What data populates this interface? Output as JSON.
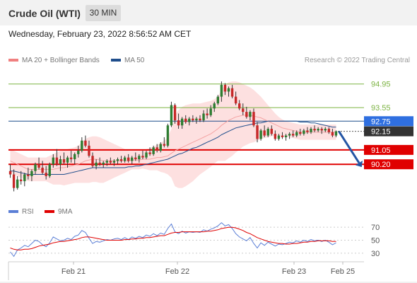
{
  "header": {
    "title": "Crude Oil (WTI)",
    "timeframe": "30 MIN"
  },
  "timestamp": "Wednesday, February 23, 2022 8:56:52 AM CET",
  "legend": {
    "bollinger": {
      "label": "MA 20 + Bollinger Bands",
      "color": "#f08080"
    },
    "ma50": {
      "label": "MA 50",
      "color": "#1f4e8c"
    },
    "credit": "Research © 2022 Trading Central"
  },
  "indicator_legend": {
    "rsi": {
      "label": "RSI",
      "color": "#5b7fd6"
    },
    "ma9": {
      "label": "9MA",
      "color": "#e00000"
    }
  },
  "chart_data": [
    {
      "type": "candlestick",
      "title": "Crude Oil (WTI)",
      "timeframe": "30 MIN",
      "x_ticks": [
        "Feb 21",
        "Feb 22",
        "Feb 23",
        "Feb 25"
      ],
      "ylim": [
        88.2,
        95.9
      ],
      "levels": [
        {
          "value": 94.95,
          "label": "94.95",
          "kind": "resistance",
          "color": "#7cb342",
          "label_bg": "",
          "label_color": "#7cb342"
        },
        {
          "value": 93.55,
          "label": "93.55",
          "kind": "resistance",
          "color": "#7cb342",
          "label_bg": "",
          "label_color": "#7cb342"
        },
        {
          "value": 92.75,
          "label": "92.75",
          "kind": "ma50",
          "color": "#1f4e8c",
          "label_bg": "#2f6fe0",
          "label_color": "#ffffff"
        },
        {
          "value": 92.15,
          "label": "92.15",
          "kind": "last",
          "color": "#555555",
          "label_bg": "#333333",
          "label_color": "#ffffff"
        },
        {
          "value": 91.05,
          "label": "91.05",
          "kind": "support",
          "color": "#e00000",
          "label_bg": "#e00000",
          "label_color": "#ffffff"
        },
        {
          "value": 90.2,
          "label": "90.20",
          "kind": "support",
          "color": "#e00000",
          "label_bg": "#e00000",
          "label_color": "#ffffff"
        }
      ],
      "forecast_arrow": {
        "from": 92.15,
        "to": 90.2,
        "color": "#2455a4"
      },
      "ohlc": [
        [
          89.8,
          90.2,
          89.4,
          89.6
        ],
        [
          89.6,
          89.9,
          88.6,
          88.8
        ],
        [
          88.8,
          89.5,
          88.7,
          89.3
        ],
        [
          89.3,
          89.8,
          89.0,
          89.2
        ],
        [
          89.2,
          89.7,
          88.9,
          89.6
        ],
        [
          89.6,
          90.0,
          89.3,
          89.5
        ],
        [
          89.5,
          89.9,
          89.2,
          89.8
        ],
        [
          89.8,
          90.3,
          89.6,
          90.2
        ],
        [
          90.2,
          90.6,
          89.9,
          90.0
        ],
        [
          90.0,
          90.4,
          89.6,
          89.7
        ],
        [
          89.7,
          90.1,
          89.3,
          89.5
        ],
        [
          89.5,
          90.3,
          89.4,
          90.2
        ],
        [
          90.2,
          90.8,
          90.0,
          90.6
        ],
        [
          90.6,
          91.1,
          90.1,
          90.2
        ],
        [
          90.2,
          90.7,
          89.8,
          90.5
        ],
        [
          90.5,
          90.9,
          90.2,
          90.3
        ],
        [
          90.3,
          90.7,
          90.0,
          90.6
        ],
        [
          90.6,
          91.0,
          90.3,
          90.5
        ],
        [
          90.5,
          90.9,
          90.2,
          90.8
        ],
        [
          90.8,
          91.3,
          90.6,
          91.0
        ],
        [
          91.0,
          91.8,
          90.9,
          91.6
        ],
        [
          91.6,
          91.9,
          91.2,
          91.3
        ],
        [
          91.3,
          91.6,
          90.6,
          90.7
        ],
        [
          90.7,
          90.9,
          90.0,
          90.1
        ],
        [
          90.1,
          90.5,
          89.9,
          90.3
        ],
        [
          90.3,
          90.6,
          90.1,
          90.2
        ],
        [
          90.2,
          90.4,
          90.0,
          90.3
        ],
        [
          90.3,
          90.5,
          90.1,
          90.4
        ],
        [
          90.4,
          90.6,
          90.2,
          90.3
        ],
        [
          90.3,
          90.5,
          90.1,
          90.4
        ],
        [
          90.4,
          90.6,
          90.2,
          90.5
        ],
        [
          90.5,
          90.7,
          90.3,
          90.4
        ],
        [
          90.4,
          90.7,
          90.3,
          90.6
        ],
        [
          90.6,
          90.8,
          90.3,
          90.4
        ],
        [
          90.4,
          90.7,
          90.2,
          90.6
        ],
        [
          90.6,
          90.9,
          90.4,
          90.5
        ],
        [
          90.5,
          90.8,
          90.3,
          90.7
        ],
        [
          90.7,
          91.0,
          90.5,
          90.6
        ],
        [
          90.6,
          91.0,
          90.5,
          90.9
        ],
        [
          90.9,
          91.2,
          90.7,
          90.8
        ],
        [
          90.8,
          91.3,
          90.7,
          91.2
        ],
        [
          91.2,
          91.4,
          90.9,
          91.0
        ],
        [
          91.0,
          91.5,
          90.9,
          91.4
        ],
        [
          91.4,
          91.8,
          91.2,
          91.3
        ],
        [
          91.3,
          92.6,
          91.2,
          92.5
        ],
        [
          92.5,
          93.9,
          92.4,
          93.7
        ],
        [
          93.7,
          93.8,
          92.6,
          92.8
        ],
        [
          92.8,
          93.2,
          92.3,
          92.5
        ],
        [
          92.5,
          93.0,
          92.3,
          92.9
        ],
        [
          92.9,
          93.1,
          92.6,
          92.7
        ],
        [
          92.7,
          93.0,
          92.5,
          92.9
        ],
        [
          92.9,
          93.1,
          92.7,
          92.8
        ],
        [
          92.8,
          93.0,
          92.6,
          92.9
        ],
        [
          92.9,
          93.1,
          92.7,
          92.8
        ],
        [
          92.8,
          93.4,
          92.7,
          93.2
        ],
        [
          93.2,
          93.5,
          92.9,
          93.1
        ],
        [
          93.1,
          93.7,
          93.0,
          93.5
        ],
        [
          93.5,
          93.9,
          93.3,
          93.8
        ],
        [
          93.8,
          94.3,
          93.7,
          94.2
        ],
        [
          94.2,
          95.1,
          93.9,
          94.9
        ],
        [
          94.9,
          95.0,
          94.3,
          94.5
        ],
        [
          94.5,
          94.8,
          94.2,
          94.7
        ],
        [
          94.7,
          94.9,
          94.1,
          94.2
        ],
        [
          94.2,
          94.5,
          93.7,
          93.8
        ],
        [
          93.8,
          94.0,
          93.4,
          93.5
        ],
        [
          93.5,
          93.8,
          93.1,
          93.3
        ],
        [
          93.3,
          93.6,
          92.9,
          93.0
        ],
        [
          93.0,
          93.4,
          92.8,
          93.3
        ],
        [
          93.3,
          93.5,
          92.4,
          92.5
        ],
        [
          92.5,
          92.7,
          91.5,
          91.7
        ],
        [
          91.7,
          92.3,
          91.6,
          92.2
        ],
        [
          92.2,
          92.5,
          91.8,
          91.9
        ],
        [
          91.9,
          92.4,
          91.8,
          92.3
        ],
        [
          92.3,
          92.5,
          91.9,
          92.0
        ],
        [
          92.0,
          92.2,
          91.6,
          91.7
        ],
        [
          91.7,
          92.0,
          91.6,
          91.9
        ],
        [
          91.9,
          92.1,
          91.7,
          91.8
        ],
        [
          91.8,
          92.0,
          91.6,
          91.9
        ],
        [
          91.9,
          92.1,
          91.7,
          92.0
        ],
        [
          92.0,
          92.2,
          91.8,
          91.9
        ],
        [
          91.9,
          92.2,
          91.8,
          92.1
        ],
        [
          92.1,
          92.3,
          91.9,
          92.0
        ],
        [
          92.0,
          92.3,
          91.9,
          92.2
        ],
        [
          92.2,
          92.4,
          92.0,
          92.1
        ],
        [
          92.1,
          92.4,
          92.0,
          92.3
        ],
        [
          92.3,
          92.5,
          92.1,
          92.2
        ],
        [
          92.2,
          92.4,
          92.1,
          92.3
        ],
        [
          92.3,
          92.4,
          92.0,
          92.2
        ],
        [
          92.2,
          92.4,
          92.1,
          92.3
        ],
        [
          92.3,
          92.4,
          92.0,
          92.1
        ],
        [
          92.1,
          92.3,
          91.8,
          91.9
        ],
        [
          91.9,
          92.2,
          91.8,
          92.15
        ]
      ],
      "ma20": [
        90.4,
        90.3,
        90.2,
        90.1,
        90.0,
        89.9,
        89.9,
        89.9,
        89.9,
        89.9,
        89.9,
        89.9,
        89.9,
        89.95,
        90.0,
        90.0,
        90.05,
        90.1,
        90.15,
        90.2,
        90.3,
        90.4,
        90.45,
        90.5,
        90.5,
        90.45,
        90.4,
        90.4,
        90.4,
        90.4,
        90.4,
        90.4,
        90.4,
        90.4,
        90.45,
        90.45,
        90.45,
        90.5,
        90.5,
        90.5,
        90.55,
        90.6,
        90.6,
        90.65,
        90.7,
        90.85,
        91.0,
        91.1,
        91.2,
        91.3,
        91.4,
        91.5,
        91.6,
        91.7,
        91.8,
        91.9,
        92.0,
        92.15,
        92.3,
        92.5,
        92.65,
        92.8,
        92.9,
        93.0,
        93.05,
        93.1,
        93.1,
        93.1,
        93.05,
        93.0,
        92.95,
        92.85,
        92.75,
        92.65,
        92.55,
        92.45,
        92.35,
        92.3,
        92.25,
        92.2,
        92.15,
        92.1,
        92.1,
        92.1,
        92.1,
        92.1,
        92.1,
        92.1,
        92.1,
        92.1,
        92.1,
        92.1
      ],
      "bb_upper": [
        91.1,
        91.0,
        90.9,
        90.8,
        90.7,
        90.6,
        90.6,
        90.6,
        90.6,
        90.6,
        90.6,
        90.7,
        90.8,
        90.9,
        91.0,
        91.05,
        91.1,
        91.15,
        91.2,
        91.3,
        91.5,
        91.7,
        91.8,
        91.85,
        91.85,
        91.8,
        91.7,
        91.6,
        91.5,
        91.4,
        91.3,
        91.2,
        91.1,
        91.0,
        91.0,
        91.0,
        91.0,
        91.05,
        91.1,
        91.15,
        91.25,
        91.35,
        91.45,
        91.6,
        91.8,
        92.3,
        93.1,
        93.4,
        93.6,
        93.7,
        93.75,
        93.8,
        93.8,
        93.8,
        93.85,
        93.9,
        93.95,
        94.05,
        94.2,
        94.6,
        94.9,
        95.05,
        95.1,
        95.1,
        95.05,
        94.95,
        94.85,
        94.75,
        94.6,
        94.4,
        94.2,
        93.95,
        93.7,
        93.45,
        93.2,
        93.0,
        92.85,
        92.75,
        92.7,
        92.65,
        92.6,
        92.55,
        92.55,
        92.55,
        92.55,
        92.55,
        92.55,
        92.55,
        92.55,
        92.55,
        92.55,
        92.55
      ],
      "bb_lower": [
        89.7,
        89.6,
        89.5,
        89.4,
        89.3,
        89.2,
        89.2,
        89.2,
        89.2,
        89.2,
        89.2,
        89.1,
        89.0,
        89.0,
        89.0,
        88.95,
        89.0,
        89.05,
        89.1,
        89.1,
        89.1,
        89.1,
        89.1,
        89.15,
        89.15,
        89.1,
        89.1,
        89.2,
        89.3,
        89.4,
        89.5,
        89.6,
        89.7,
        89.8,
        89.9,
        89.9,
        89.9,
        89.95,
        89.9,
        89.85,
        89.85,
        89.85,
        89.75,
        89.7,
        89.6,
        89.4,
        88.9,
        88.8,
        88.8,
        88.9,
        89.05,
        89.2,
        89.4,
        89.6,
        89.75,
        89.9,
        90.05,
        90.25,
        90.4,
        90.4,
        90.4,
        90.55,
        90.7,
        90.9,
        91.05,
        91.25,
        91.35,
        91.45,
        91.5,
        91.6,
        91.7,
        91.75,
        91.8,
        91.85,
        91.9,
        91.9,
        91.85,
        91.85,
        91.8,
        91.75,
        91.7,
        91.65,
        91.65,
        91.65,
        91.65,
        91.65,
        91.65,
        91.65,
        91.65,
        91.65,
        91.65,
        91.65
      ],
      "ma50": [
        89.8,
        89.8,
        89.75,
        89.7,
        89.65,
        89.6,
        89.6,
        89.6,
        89.6,
        89.6,
        89.6,
        89.6,
        89.6,
        89.6,
        89.6,
        89.6,
        89.65,
        89.7,
        89.75,
        89.8,
        89.85,
        89.9,
        89.95,
        90.0,
        90.0,
        90.0,
        90.0,
        90.0,
        90.0,
        90.0,
        90.0,
        90.0,
        90.0,
        90.05,
        90.05,
        90.1,
        90.1,
        90.15,
        90.2,
        90.25,
        90.3,
        90.35,
        90.4,
        90.45,
        90.5,
        90.6,
        90.7,
        90.8,
        90.85,
        90.95,
        91.05,
        91.15,
        91.2,
        91.3,
        91.4,
        91.5,
        91.6,
        91.7,
        91.8,
        91.95,
        92.05,
        92.15,
        92.25,
        92.35,
        92.4,
        92.45,
        92.5,
        92.55,
        92.6,
        92.65,
        92.65,
        92.7,
        92.75,
        92.75,
        92.75,
        92.75,
        92.75,
        92.75,
        92.75,
        92.75,
        92.75,
        92.7,
        92.7,
        92.7,
        92.65,
        92.65,
        92.6,
        92.55,
        92.5,
        92.45,
        92.4,
        92.4
      ]
    },
    {
      "type": "line",
      "title": "RSI",
      "y_ticks": [
        70,
        50,
        30
      ],
      "ylim": [
        20,
        80
      ],
      "series": [
        {
          "name": "RSI",
          "color": "#5b7fd6",
          "values": [
            32,
            25,
            35,
            38,
            42,
            40,
            45,
            50,
            48,
            43,
            40,
            46,
            55,
            52,
            49,
            50,
            53,
            51,
            56,
            58,
            65,
            62,
            53,
            45,
            48,
            47,
            49,
            51,
            50,
            52,
            53,
            51,
            54,
            51,
            55,
            53,
            56,
            54,
            58,
            56,
            60,
            57,
            61,
            59,
            68,
            75,
            63,
            60,
            64,
            61,
            63,
            62,
            63,
            62,
            66,
            64,
            67,
            69,
            72,
            77,
            72,
            74,
            68,
            60,
            55,
            52,
            49,
            54,
            45,
            38,
            46,
            42,
            47,
            44,
            41,
            44,
            43,
            45,
            47,
            46,
            49,
            47,
            50,
            48,
            51,
            49,
            50,
            48,
            50,
            47,
            43,
            46
          ]
        },
        {
          "name": "9MA",
          "color": "#e00000",
          "values": [
            38,
            36,
            35,
            35,
            36,
            36,
            37,
            39,
            41,
            42,
            43,
            44,
            46,
            47,
            48,
            48,
            49,
            50,
            51,
            52,
            54,
            55,
            55,
            54,
            53,
            52,
            51,
            50,
            50,
            50,
            50,
            50,
            51,
            51,
            52,
            52,
            53,
            53,
            54,
            54,
            55,
            56,
            57,
            57,
            59,
            61,
            62,
            62,
            63,
            63,
            63,
            63,
            63,
            63,
            63,
            64,
            64,
            65,
            66,
            68,
            69,
            70,
            70,
            69,
            67,
            65,
            62,
            60,
            57,
            54,
            52,
            50,
            48,
            47,
            46,
            45,
            45,
            44,
            44,
            45,
            45,
            46,
            47,
            47,
            48,
            48,
            49,
            49,
            49,
            49,
            48,
            48
          ]
        }
      ]
    }
  ]
}
